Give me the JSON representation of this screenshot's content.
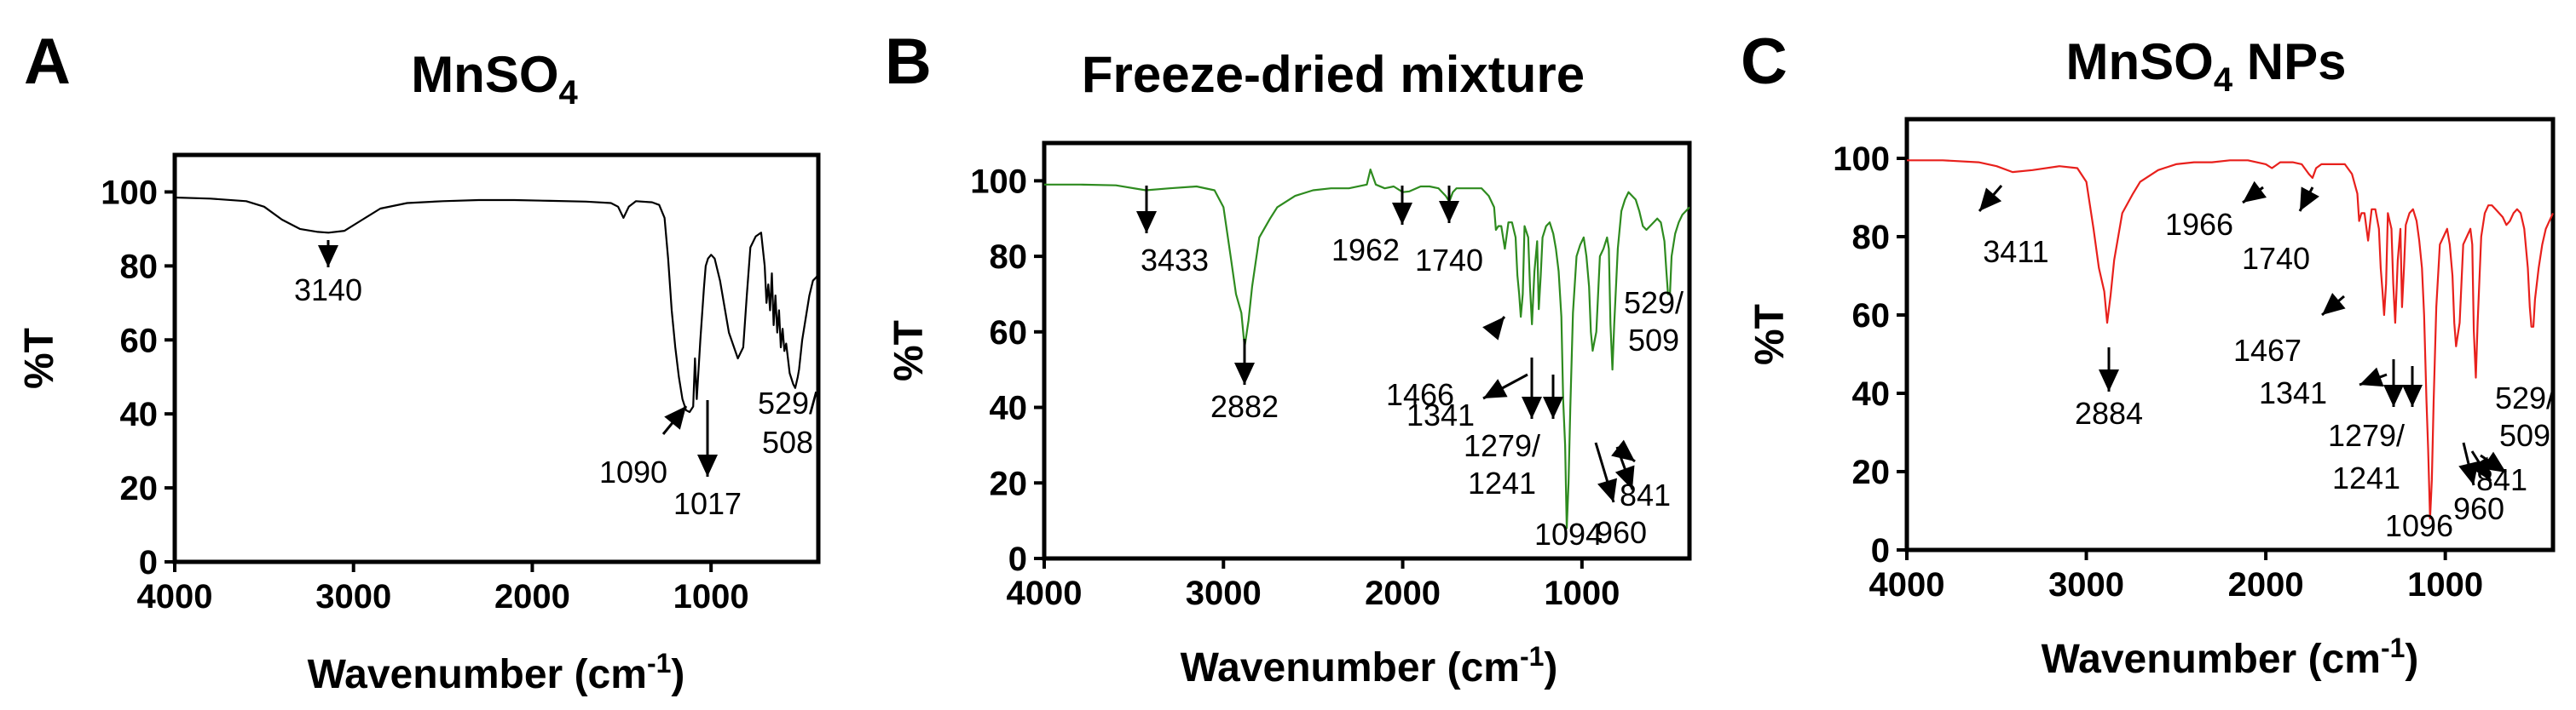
{
  "figure": {
    "panels": [
      {
        "letter": "A",
        "title_main": "MnSO",
        "title_sub": "4",
        "title_suffix": ""
      },
      {
        "letter": "B",
        "title_main": "Freeze-dried mixture",
        "title_sub": "",
        "title_suffix": ""
      },
      {
        "letter": "C",
        "title_main": "MnSO",
        "title_sub": "4",
        "title_suffix": " NPs"
      }
    ]
  },
  "chart_data": [
    {
      "type": "line",
      "title": "MnSO4",
      "xlabel": "Wavenumber (cm-1)",
      "xlabel_main": "Wavenumber (cm",
      "xlabel_sup": "-1",
      "xlabel_end": ")",
      "ylabel": "%T",
      "xlim": [
        4000,
        400
      ],
      "ylim": [
        0,
        110
      ],
      "xticks": [
        4000,
        3000,
        2000,
        1000
      ],
      "yticks": [
        0,
        20,
        40,
        60,
        80,
        100
      ],
      "color": "#000000",
      "series": [
        {
          "name": "MnSO4",
          "x": [
            4000,
            3800,
            3600,
            3500,
            3400,
            3300,
            3200,
            3140,
            3050,
            2950,
            2850,
            2700,
            2500,
            2300,
            2100,
            1900,
            1700,
            1560,
            1520,
            1490,
            1460,
            1420,
            1330,
            1290,
            1260,
            1240,
            1220,
            1200,
            1180,
            1160,
            1140,
            1120,
            1100,
            1090,
            1080,
            1060,
            1040,
            1030,
            1017,
            1000,
            980,
            950,
            900,
            850,
            820,
            800,
            780,
            750,
            720,
            700,
            690,
            680,
            670,
            660,
            650,
            640,
            630,
            620,
            610,
            600,
            590,
            580,
            560,
            540,
            529,
            515,
            508,
            490,
            470,
            450,
            430,
            410,
            400
          ],
          "y": [
            98.5,
            98.2,
            97.5,
            96,
            92.5,
            90,
            89.2,
            89,
            89.5,
            92.5,
            95.5,
            97,
            97.5,
            97.8,
            97.8,
            97.6,
            97.4,
            97,
            96,
            93,
            96,
            97.5,
            97.2,
            96.5,
            93,
            82,
            68,
            58,
            50,
            44,
            41,
            40.5,
            42,
            55,
            44,
            60,
            74,
            80,
            82,
            83,
            82,
            76,
            62,
            55,
            58,
            72,
            85,
            88,
            89,
            80,
            70,
            75,
            68,
            78,
            64,
            72,
            62,
            68,
            58,
            63,
            57,
            59,
            51,
            48,
            47,
            50,
            52,
            60,
            66,
            72,
            76,
            77,
            78
          ]
        }
      ],
      "annotations": [
        {
          "label": "3140",
          "x": 3140,
          "y": 89
        },
        {
          "label": "1090",
          "x": 1090,
          "y": 46
        },
        {
          "label": "1017",
          "x": 1017,
          "y": 66
        },
        {
          "label": "529/",
          "x": 529,
          "y": 47
        },
        {
          "label": "508",
          "x": 508,
          "y": 47
        }
      ]
    },
    {
      "type": "line",
      "title": "Freeze-dried mixture",
      "xlabel": "Wavenumber (cm-1)",
      "xlabel_main": "Wavenumber (cm",
      "xlabel_sup": "-1",
      "xlabel_end": ")",
      "ylabel": "%T",
      "xlim": [
        4000,
        400
      ],
      "ylim": [
        0,
        110
      ],
      "xticks": [
        4000,
        3000,
        2000,
        1000
      ],
      "yticks": [
        0,
        20,
        40,
        60,
        80,
        100
      ],
      "color": "#2e8b1f",
      "series": [
        {
          "name": "Freeze-dried mixture",
          "x": [
            4000,
            3800,
            3600,
            3433,
            3300,
            3150,
            3050,
            3000,
            2960,
            2930,
            2900,
            2882,
            2860,
            2840,
            2800,
            2740,
            2700,
            2600,
            2500,
            2400,
            2300,
            2200,
            2180,
            2150,
            2100,
            2050,
            2000,
            1962,
            1900,
            1850,
            1800,
            1760,
            1740,
            1720,
            1700,
            1650,
            1600,
            1560,
            1520,
            1490,
            1480,
            1466,
            1450,
            1430,
            1410,
            1390,
            1370,
            1360,
            1350,
            1341,
            1330,
            1320,
            1300,
            1290,
            1279,
            1265,
            1250,
            1241,
            1230,
            1220,
            1200,
            1180,
            1160,
            1145,
            1130,
            1115,
            1105,
            1094,
            1085,
            1075,
            1065,
            1050,
            1030,
            1010,
            990,
            975,
            960,
            950,
            940,
            920,
            900,
            880,
            860,
            850,
            841,
            830,
            820,
            800,
            780,
            760,
            740,
            720,
            700,
            680,
            660,
            640,
            620,
            600,
            580,
            560,
            540,
            529,
            520,
            509,
            500,
            480,
            460,
            440,
            420,
            400
          ],
          "y": [
            99,
            99,
            98.8,
            97.5,
            98,
            98.5,
            97.5,
            93,
            80,
            70,
            65,
            56,
            63,
            72,
            85,
            90,
            93,
            96,
            97.5,
            98,
            98,
            99,
            103,
            99,
            98,
            98.5,
            97,
            97.2,
            98.5,
            98.5,
            98,
            96,
            94.5,
            97,
            98,
            98,
            98,
            98,
            96,
            93,
            87,
            88,
            88,
            82,
            89,
            89,
            85,
            75,
            70,
            64,
            70,
            88,
            85,
            72,
            62,
            76,
            84,
            66,
            75,
            85,
            88,
            89,
            86,
            82,
            76,
            64,
            42,
            30,
            8,
            20,
            40,
            65,
            80,
            83,
            85,
            80,
            72,
            60,
            55,
            60,
            80,
            82,
            85,
            82,
            62,
            50,
            62,
            82,
            92,
            95,
            97,
            96,
            95,
            92,
            88,
            87,
            88,
            89,
            90,
            89,
            84,
            76,
            70,
            70,
            80,
            86,
            89,
            91,
            92,
            93
          ]
        }
      ],
      "annotations": [
        {
          "label": "3433",
          "x": 3433,
          "y": 97.5
        },
        {
          "label": "2882",
          "x": 2882,
          "y": 56
        },
        {
          "label": "1962",
          "x": 1962,
          "y": 97.2
        },
        {
          "label": "1740",
          "x": 1740,
          "y": 94.5
        },
        {
          "label": "1466",
          "x": 1466,
          "y": 88
        },
        {
          "label": "1341",
          "x": 1341,
          "y": 64
        },
        {
          "label": "1279/",
          "x": 1279,
          "y": 62
        },
        {
          "label": "1241",
          "x": 1241,
          "y": 66
        },
        {
          "label": "1094",
          "x": 1094,
          "y": 8
        },
        {
          "label": "960",
          "x": 960,
          "y": 60
        },
        {
          "label": "841",
          "x": 841,
          "y": 50
        },
        {
          "label": "529/",
          "x": 529,
          "y": 70
        },
        {
          "label": "509",
          "x": 509,
          "y": 70
        }
      ]
    },
    {
      "type": "line",
      "title": "MnSO4 NPs",
      "xlabel": "Wavenumber (cm-1)",
      "xlabel_main": "Wavenumber (cm",
      "xlabel_sup": "-1",
      "xlabel_end": ")",
      "ylabel": "%T",
      "xlim": [
        4000,
        400
      ],
      "ylim": [
        0,
        110
      ],
      "xticks": [
        4000,
        3000,
        2000,
        1000
      ],
      "yticks": [
        0,
        20,
        40,
        60,
        80,
        100
      ],
      "color": "#e8201c",
      "series": [
        {
          "name": "MnSO4 NPs",
          "x": [
            4000,
            3800,
            3600,
            3500,
            3411,
            3300,
            3150,
            3050,
            3000,
            2960,
            2930,
            2900,
            2884,
            2865,
            2845,
            2800,
            2740,
            2700,
            2600,
            2500,
            2400,
            2300,
            2200,
            2100,
            2000,
            1966,
            1920,
            1850,
            1800,
            1760,
            1740,
            1720,
            1690,
            1650,
            1600,
            1560,
            1520,
            1490,
            1480,
            1467,
            1450,
            1430,
            1410,
            1390,
            1370,
            1360,
            1350,
            1341,
            1330,
            1320,
            1300,
            1290,
            1279,
            1265,
            1250,
            1241,
            1230,
            1220,
            1200,
            1180,
            1160,
            1145,
            1130,
            1118,
            1105,
            1096,
            1085,
            1075,
            1065,
            1050,
            1030,
            1010,
            990,
            975,
            960,
            950,
            940,
            920,
            900,
            880,
            860,
            850,
            841,
            830,
            820,
            800,
            780,
            760,
            740,
            720,
            700,
            680,
            660,
            640,
            620,
            600,
            580,
            560,
            540,
            529,
            520,
            509,
            500,
            480,
            460,
            440,
            420,
            400
          ],
          "y": [
            99.5,
            99.5,
            99,
            98,
            96.5,
            97,
            98,
            97.5,
            94,
            82,
            72,
            66,
            58,
            65,
            74,
            86,
            91,
            94,
            97,
            98.5,
            99,
            99,
            99.5,
            99.5,
            98.5,
            97.5,
            99,
            99,
            98.5,
            96,
            95,
            97.5,
            98.5,
            98.5,
            98.5,
            98.5,
            96,
            91,
            84,
            86,
            86,
            79,
            87,
            87,
            82,
            72,
            66,
            60,
            68,
            86,
            82,
            68,
            58,
            74,
            82,
            62,
            72,
            83,
            86,
            87,
            84,
            79,
            72,
            60,
            38,
            26,
            8,
            18,
            38,
            62,
            78,
            80,
            82,
            78,
            70,
            58,
            52,
            58,
            78,
            80,
            82,
            78,
            56,
            44,
            58,
            80,
            86,
            88,
            88,
            87,
            86,
            85,
            83,
            84,
            86,
            87,
            86,
            82,
            72,
            62,
            57,
            57,
            64,
            72,
            78,
            82,
            84,
            86
          ]
        }
      ],
      "annotations": [
        {
          "label": "3411",
          "x": 3411,
          "y": 96.5
        },
        {
          "label": "2884",
          "x": 2884,
          "y": 58
        },
        {
          "label": "1966",
          "x": 1966,
          "y": 97.5
        },
        {
          "label": "1740",
          "x": 1740,
          "y": 95
        },
        {
          "label": "1467",
          "x": 1467,
          "y": 86
        },
        {
          "label": "1341",
          "x": 1341,
          "y": 60
        },
        {
          "label": "1279/",
          "x": 1279,
          "y": 58
        },
        {
          "label": "1241",
          "x": 1241,
          "y": 62
        },
        {
          "label": "1096",
          "x": 1096,
          "y": 8
        },
        {
          "label": "960",
          "x": 960,
          "y": 58
        },
        {
          "label": "841",
          "x": 841,
          "y": 44
        },
        {
          "label": "529/",
          "x": 529,
          "y": 57
        },
        {
          "label": "509",
          "x": 509,
          "y": 57
        }
      ]
    }
  ]
}
